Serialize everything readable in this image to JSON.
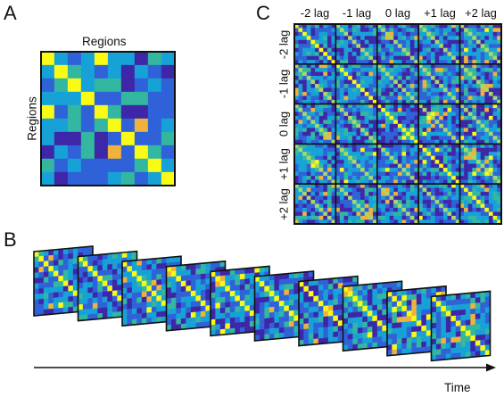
{
  "panels": {
    "a": {
      "letter": "A",
      "top_label": "Regions",
      "side_label": "Regions"
    },
    "b": {
      "letter": "B",
      "axis_label": "Time"
    },
    "c": {
      "letter": "C",
      "col_labels": [
        "-2 lag",
        "-1 lag",
        "0 lag",
        "+1 lag",
        "+2 lag"
      ],
      "row_labels": [
        "-2 lag",
        "-1 lag",
        "0 lag",
        "+1 lag",
        "+2 lag"
      ]
    }
  },
  "colors": {
    "low": "#3e26a8",
    "mid_low": "#2f62d8",
    "mid": "#16a2d6",
    "mid_high": "#33b7a0",
    "high": "#f9fb15",
    "orange": "#f0b23a",
    "frame": "#111111"
  }
}
